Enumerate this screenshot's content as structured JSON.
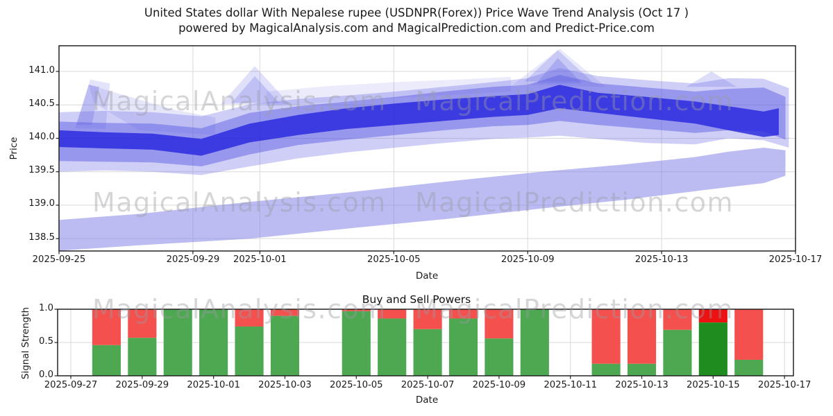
{
  "title": {
    "line1": "United States dollar With Nepalese rupee (USDNPR(Forex)) Price Wave Trend Analysis (Oct 17 )",
    "line2": "powered by MagicalAnalysis.com and MagicalPrediction.com and Predict-Price.com"
  },
  "watermark": {
    "left": "MagicalAnalysis.com",
    "right": "MagicalPrediction.com"
  },
  "chart_data": [
    {
      "type": "area",
      "name": "price-wave-trend",
      "title": "",
      "ylabel": "Price",
      "xlabel": "Date",
      "x_unit": "days since 2025-09-25",
      "xlim": [
        0,
        22
      ],
      "ylim": [
        138.315,
        141.384
      ],
      "grid": true,
      "grid_color": "#d9d9d9",
      "spine_color": "#222222",
      "yticks": [
        {
          "v": 138.5,
          "label": "138.5"
        },
        {
          "v": 139.0,
          "label": "139.0"
        },
        {
          "v": 139.5,
          "label": "139.5"
        },
        {
          "v": 140.0,
          "label": "140.0"
        },
        {
          "v": 140.5,
          "label": "140.5"
        },
        {
          "v": 141.0,
          "label": "141.0"
        }
      ],
      "xticks": [
        {
          "d": 0,
          "label": "2025-09-25"
        },
        {
          "d": 4,
          "label": "2025-09-29"
        },
        {
          "d": 6,
          "label": "2025-10-01"
        },
        {
          "d": 10,
          "label": "2025-10-05"
        },
        {
          "d": 14,
          "label": "2025-10-09"
        },
        {
          "d": 18,
          "label": "2025-10-13"
        },
        {
          "d": 22,
          "label": "2025-10-17"
        }
      ],
      "bands": [
        {
          "name": "lower-forecast-band",
          "color": "#7a7ae8",
          "opacity": 0.5,
          "top": [
            [
              0,
              138.78
            ],
            [
              2.4,
              138.87
            ],
            [
              5.7,
              139.05
            ],
            [
              8.6,
              139.19
            ],
            [
              11.5,
              139.35
            ],
            [
              14.4,
              139.5
            ],
            [
              16.9,
              139.61
            ],
            [
              19,
              139.72
            ],
            [
              20,
              139.8
            ],
            [
              21.05,
              139.86
            ],
            [
              21.7,
              139.82
            ]
          ],
          "bottom": [
            [
              0,
              138.32
            ],
            [
              2.4,
              138.4
            ],
            [
              5.7,
              138.5
            ],
            [
              8.6,
              138.65
            ],
            [
              11.5,
              138.79
            ],
            [
              14.4,
              138.95
            ],
            [
              16.9,
              139.08
            ],
            [
              19,
              139.21
            ],
            [
              20,
              139.27
            ],
            [
              21.05,
              139.33
            ],
            [
              21.7,
              139.44
            ]
          ]
        },
        {
          "name": "outer-wave-band",
          "color": "#6666e6",
          "opacity": 0.32,
          "top": [
            [
              0,
              140.39
            ],
            [
              1.35,
              140.41
            ],
            [
              2.8,
              140.39
            ],
            [
              4.25,
              140.33
            ],
            [
              5.7,
              140.51
            ],
            [
              7.15,
              140.59
            ],
            [
              8.6,
              140.64
            ],
            [
              10.05,
              140.7
            ],
            [
              11.5,
              140.77
            ],
            [
              12.95,
              140.84
            ],
            [
              14,
              140.9
            ],
            [
              14.95,
              141.05
            ],
            [
              16.1,
              140.93
            ],
            [
              17.55,
              140.87
            ],
            [
              19,
              140.82
            ],
            [
              20,
              140.9
            ],
            [
              21.05,
              140.89
            ],
            [
              21.8,
              140.75
            ]
          ],
          "bottom": [
            [
              0,
              139.5
            ],
            [
              1.35,
              139.52
            ],
            [
              2.8,
              139.5
            ],
            [
              4.25,
              139.45
            ],
            [
              5.7,
              139.58
            ],
            [
              7.15,
              139.7
            ],
            [
              8.6,
              139.79
            ],
            [
              10.05,
              139.86
            ],
            [
              11.5,
              139.93
            ],
            [
              12.95,
              139.99
            ],
            [
              14,
              140.01
            ],
            [
              14.95,
              140.04
            ],
            [
              16.1,
              139.99
            ],
            [
              17.55,
              139.93
            ],
            [
              19,
              139.91
            ],
            [
              20,
              140.0
            ],
            [
              21.05,
              139.97
            ],
            [
              21.8,
              139.86
            ]
          ]
        },
        {
          "name": "mid-wave-band",
          "color": "#4d4de0",
          "opacity": 0.42,
          "top": [
            [
              0,
              140.25
            ],
            [
              1.35,
              140.23
            ],
            [
              2.8,
              140.22
            ],
            [
              4.25,
              140.15
            ],
            [
              5.7,
              140.38
            ],
            [
              7.15,
              140.48
            ],
            [
              8.6,
              140.55
            ],
            [
              10.05,
              140.62
            ],
            [
              11.5,
              140.7
            ],
            [
              12.95,
              140.77
            ],
            [
              14,
              140.8
            ],
            [
              14.95,
              140.95
            ],
            [
              16.1,
              140.82
            ],
            [
              17.55,
              140.76
            ],
            [
              19,
              140.7
            ],
            [
              20,
              140.74
            ],
            [
              21.05,
              140.76
            ],
            [
              21.7,
              140.62
            ]
          ],
          "bottom": [
            [
              0,
              139.66
            ],
            [
              1.35,
              139.65
            ],
            [
              2.8,
              139.64
            ],
            [
              4.25,
              139.58
            ],
            [
              5.7,
              139.76
            ],
            [
              7.15,
              139.9
            ],
            [
              8.6,
              139.98
            ],
            [
              10.05,
              140.05
            ],
            [
              11.5,
              140.12
            ],
            [
              12.95,
              140.18
            ],
            [
              14,
              140.2
            ],
            [
              14.95,
              140.26
            ],
            [
              16.1,
              140.2
            ],
            [
              17.55,
              140.14
            ],
            [
              19,
              140.08
            ],
            [
              20,
              140.12
            ],
            [
              21.05,
              140.1
            ],
            [
              21.7,
              139.98
            ]
          ]
        },
        {
          "name": "core-wave-band",
          "color": "#2424dd",
          "opacity": 0.8,
          "top": [
            [
              0,
              140.12
            ],
            [
              1.35,
              140.09
            ],
            [
              2.8,
              140.07
            ],
            [
              4.25,
              139.99
            ],
            [
              5.7,
              140.22
            ],
            [
              7.15,
              140.35
            ],
            [
              8.6,
              140.45
            ],
            [
              10.05,
              140.52
            ],
            [
              11.5,
              140.58
            ],
            [
              12.95,
              140.63
            ],
            [
              14,
              140.66
            ],
            [
              14.95,
              140.8
            ],
            [
              16.1,
              140.68
            ],
            [
              17.55,
              140.62
            ],
            [
              19,
              140.55
            ],
            [
              20,
              140.48
            ],
            [
              21.05,
              140.4
            ],
            [
              21.5,
              140.45
            ]
          ],
          "bottom": [
            [
              0,
              139.87
            ],
            [
              1.35,
              139.85
            ],
            [
              2.8,
              139.83
            ],
            [
              4.25,
              139.74
            ],
            [
              5.7,
              139.94
            ],
            [
              7.15,
              140.05
            ],
            [
              8.6,
              140.14
            ],
            [
              10.05,
              140.2
            ],
            [
              11.5,
              140.26
            ],
            [
              12.95,
              140.32
            ],
            [
              14,
              140.35
            ],
            [
              14.95,
              140.45
            ],
            [
              16.1,
              140.38
            ],
            [
              17.55,
              140.3
            ],
            [
              19,
              140.22
            ],
            [
              20,
              140.12
            ],
            [
              21.05,
              140.02
            ],
            [
              21.5,
              140.05
            ]
          ]
        }
      ],
      "spikes": [
        {
          "name": "left-fan-a",
          "color": "#6666e6",
          "opacity": 0.3,
          "points": [
            [
              0.52,
              140.2
            ],
            [
              0.89,
              140.8
            ],
            [
              1.2,
              140.77
            ],
            [
              0.98,
              140.2
            ]
          ]
        },
        {
          "name": "left-fan-b",
          "color": "#6666e6",
          "opacity": 0.18,
          "points": [
            [
              0.48,
              140.15
            ],
            [
              0.93,
              140.88
            ],
            [
              1.52,
              140.82
            ],
            [
              1.39,
              140.14
            ]
          ]
        },
        {
          "name": "fan-connector",
          "color": "#6666e6",
          "opacity": 0.16,
          "points": [
            [
              0.89,
              140.8
            ],
            [
              3.42,
              140.43
            ],
            [
              4.67,
              140.31
            ],
            [
              4.67,
              140.05
            ],
            [
              2.39,
              140.12
            ],
            [
              1.04,
              140.53
            ]
          ]
        },
        {
          "name": "upper-haze",
          "color": "#6666e6",
          "opacity": 0.13,
          "points": [
            [
              6.2,
              140.7
            ],
            [
              8,
              140.78
            ],
            [
              10,
              140.84
            ],
            [
              12,
              140.88
            ],
            [
              13.5,
              140.92
            ],
            [
              13.5,
              140.7
            ],
            [
              10,
              140.6
            ],
            [
              6.2,
              140.48
            ]
          ]
        },
        {
          "name": "oct1-peak-outer",
          "color": "#6666e6",
          "opacity": 0.2,
          "points": [
            [
              4.84,
              140.51
            ],
            [
              5.85,
              141.08
            ],
            [
              6.89,
              140.51
            ]
          ]
        },
        {
          "name": "oct1-peak-inner",
          "color": "#6666e6",
          "opacity": 0.26,
          "points": [
            [
              5.15,
              140.53
            ],
            [
              5.85,
              140.93
            ],
            [
              6.58,
              140.53
            ]
          ]
        },
        {
          "name": "oct10-peak-wide",
          "color": "#6666e6",
          "opacity": 0.14,
          "points": [
            [
              13.55,
              140.8
            ],
            [
              14.96,
              141.34
            ],
            [
              16.33,
              140.77
            ]
          ]
        },
        {
          "name": "oct10-peak-mid",
          "color": "#6666e6",
          "opacity": 0.24,
          "points": [
            [
              13.9,
              140.85
            ],
            [
              14.9,
              141.32
            ],
            [
              15.92,
              140.85
            ]
          ]
        },
        {
          "name": "oct10-peak-inner",
          "color": "#6666e6",
          "opacity": 0.3,
          "points": [
            [
              14.26,
              140.82
            ],
            [
              14.9,
              141.2
            ],
            [
              15.62,
              140.82
            ]
          ]
        },
        {
          "name": "right-bump",
          "color": "#6666e6",
          "opacity": 0.22,
          "points": [
            [
              18.74,
              140.77
            ],
            [
              19.49,
              141.0
            ],
            [
              20.24,
              140.77
            ]
          ]
        }
      ]
    },
    {
      "type": "stacked-bar",
      "name": "buy-sell-powers",
      "title": "Buy and Sell Powers",
      "ylabel": "Signal Strength",
      "xlabel": "Date",
      "x_unit": "days since 2025-09-27",
      "xlim": [
        -0.37,
        20.25
      ],
      "ylim": [
        0,
        1
      ],
      "grid": true,
      "grid_color": "#d9d9d9",
      "spine_color": "#222222",
      "bar_width_days": 0.8,
      "colors": {
        "buy": "#4ea852",
        "sell": "#f4514e",
        "buy_strong": "#1e8c1e",
        "sell_strong": "#ec1212"
      },
      "yticks": [
        {
          "v": 0.0,
          "label": "0.0"
        },
        {
          "v": 0.5,
          "label": "0.5"
        },
        {
          "v": 1.0,
          "label": "1.0"
        }
      ],
      "xticks": [
        {
          "d": 0,
          "label": "2025-09-27"
        },
        {
          "d": 2,
          "label": "2025-09-29"
        },
        {
          "d": 4,
          "label": "2025-10-01"
        },
        {
          "d": 6,
          "label": "2025-10-03"
        },
        {
          "d": 8,
          "label": "2025-10-05"
        },
        {
          "d": 10,
          "label": "2025-10-07"
        },
        {
          "d": 12,
          "label": "2025-10-09"
        },
        {
          "d": 14,
          "label": "2025-10-11"
        },
        {
          "d": 16,
          "label": "2025-10-13"
        },
        {
          "d": 18,
          "label": "2025-10-15"
        },
        {
          "d": 20,
          "label": "2025-10-17"
        }
      ],
      "bars": [
        {
          "date": "2025-09-28",
          "d": 1,
          "buy": 0.46,
          "sell": 0.54,
          "strong": false
        },
        {
          "date": "2025-09-29",
          "d": 2,
          "buy": 0.57,
          "sell": 0.43,
          "strong": false
        },
        {
          "date": "2025-09-30",
          "d": 3,
          "buy": 1.0,
          "sell": 0.0,
          "strong": false
        },
        {
          "date": "2025-10-01",
          "d": 4,
          "buy": 1.0,
          "sell": 0.0,
          "strong": false
        },
        {
          "date": "2025-10-02",
          "d": 5,
          "buy": 0.74,
          "sell": 0.26,
          "strong": false
        },
        {
          "date": "2025-10-03",
          "d": 6,
          "buy": 0.9,
          "sell": 0.1,
          "strong": false
        },
        {
          "date": "2025-10-05",
          "d": 8,
          "buy": 0.97,
          "sell": 0.03,
          "strong": false
        },
        {
          "date": "2025-10-06",
          "d": 9,
          "buy": 0.86,
          "sell": 0.14,
          "strong": false
        },
        {
          "date": "2025-10-07",
          "d": 10,
          "buy": 0.7,
          "sell": 0.3,
          "strong": false
        },
        {
          "date": "2025-10-08",
          "d": 11,
          "buy": 0.86,
          "sell": 0.14,
          "strong": false
        },
        {
          "date": "2025-10-09",
          "d": 12,
          "buy": 0.56,
          "sell": 0.44,
          "strong": false
        },
        {
          "date": "2025-10-10",
          "d": 13,
          "buy": 1.0,
          "sell": 0.0,
          "strong": false
        },
        {
          "date": "2025-10-12",
          "d": 15,
          "buy": 0.18,
          "sell": 0.82,
          "strong": false
        },
        {
          "date": "2025-10-13",
          "d": 16,
          "buy": 0.18,
          "sell": 0.82,
          "strong": false
        },
        {
          "date": "2025-10-14",
          "d": 17,
          "buy": 0.69,
          "sell": 0.31,
          "strong": false
        },
        {
          "date": "2025-10-15",
          "d": 18,
          "buy": 0.8,
          "sell": 0.2,
          "strong": true
        },
        {
          "date": "2025-10-16",
          "d": 19,
          "buy": 0.24,
          "sell": 0.76,
          "strong": false
        }
      ]
    }
  ]
}
